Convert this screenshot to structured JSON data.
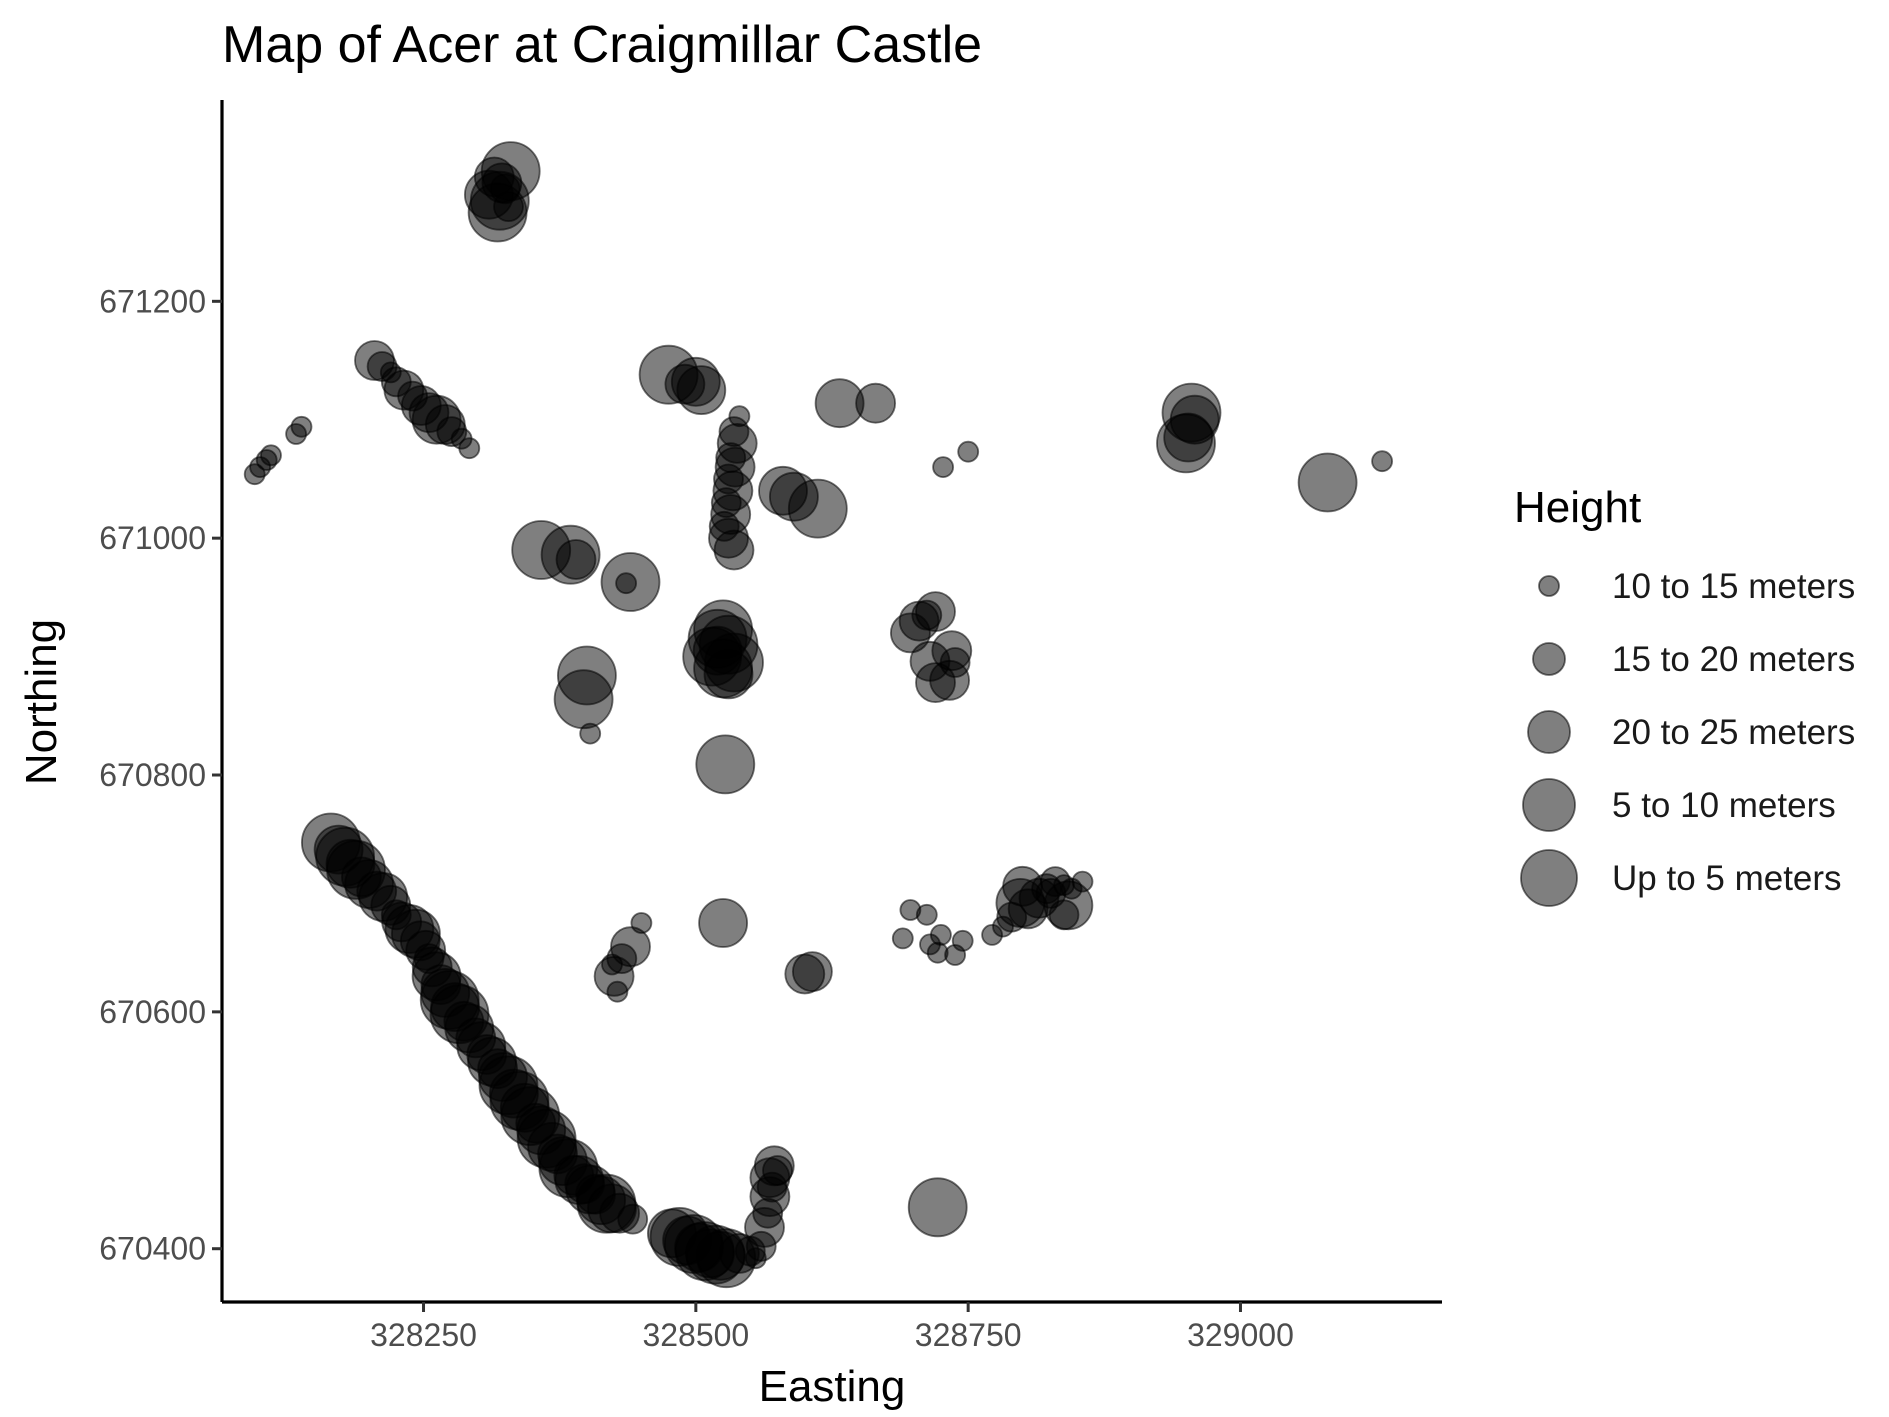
{
  "chart_data": {
    "type": "scatter",
    "title": "Map of Acer at Craigmillar Castle",
    "xlabel": "Easting",
    "ylabel": "Northing",
    "xlim": [
      328065,
      329185
    ],
    "ylim": [
      670355,
      671370
    ],
    "x_ticks": [
      328250,
      328500,
      328750,
      329000
    ],
    "x_tick_labels": [
      "328250",
      "328500",
      "328750",
      "329000"
    ],
    "y_ticks": [
      670400,
      670600,
      670800,
      671000,
      671200
    ],
    "y_tick_labels": [
      "670400",
      "670600",
      "670800",
      "671000",
      "671200"
    ],
    "grid": false,
    "legend_position": "right",
    "point_color": "#000000",
    "point_opacity": 0.5,
    "legend": {
      "title": "Height",
      "entries": [
        {
          "label": "10 to 15 meters",
          "size": 1
        },
        {
          "label": "15 to 20 meters",
          "size": 2
        },
        {
          "label": "20 to 25 meters",
          "size": 3
        },
        {
          "label": "5 to 10 meters",
          "size": 4
        },
        {
          "label": "Up to 5 meters",
          "size": 5
        }
      ]
    },
    "points": [
      {
        "x": 328315,
        "y": 671305,
        "size": 3
      },
      {
        "x": 328330,
        "y": 671310,
        "size": 5
      },
      {
        "x": 328310,
        "y": 671290,
        "size": 4
      },
      {
        "x": 328320,
        "y": 671285,
        "size": 5
      },
      {
        "x": 328325,
        "y": 671295,
        "size": 2
      },
      {
        "x": 328318,
        "y": 671275,
        "size": 5
      },
      {
        "x": 328328,
        "y": 671280,
        "size": 2
      },
      {
        "x": 328322,
        "y": 671300,
        "size": 3
      },
      {
        "x": 328205,
        "y": 671150,
        "size": 3
      },
      {
        "x": 328212,
        "y": 671145,
        "size": 2
      },
      {
        "x": 328220,
        "y": 671140,
        "size": 1
      },
      {
        "x": 328225,
        "y": 671132,
        "size": 2
      },
      {
        "x": 328232,
        "y": 671125,
        "size": 3
      },
      {
        "x": 328240,
        "y": 671120,
        "size": 2
      },
      {
        "x": 328248,
        "y": 671112,
        "size": 3
      },
      {
        "x": 328255,
        "y": 671106,
        "size": 3
      },
      {
        "x": 328262,
        "y": 671100,
        "size": 4
      },
      {
        "x": 328270,
        "y": 671096,
        "size": 3
      },
      {
        "x": 328276,
        "y": 671090,
        "size": 2
      },
      {
        "x": 328285,
        "y": 671084,
        "size": 1
      },
      {
        "x": 328292,
        "y": 671076,
        "size": 1
      },
      {
        "x": 328095,
        "y": 671054,
        "size": 1
      },
      {
        "x": 328100,
        "y": 671060,
        "size": 1
      },
      {
        "x": 328106,
        "y": 671066,
        "size": 1
      },
      {
        "x": 328110,
        "y": 671070,
        "size": 1
      },
      {
        "x": 328133,
        "y": 671088,
        "size": 1
      },
      {
        "x": 328138,
        "y": 671094,
        "size": 1
      },
      {
        "x": 328475,
        "y": 671138,
        "size": 5
      },
      {
        "x": 328500,
        "y": 671132,
        "size": 4
      },
      {
        "x": 328505,
        "y": 671125,
        "size": 4
      },
      {
        "x": 328490,
        "y": 671130,
        "size": 3
      },
      {
        "x": 328540,
        "y": 671103,
        "size": 1
      },
      {
        "x": 328535,
        "y": 671090,
        "size": 2
      },
      {
        "x": 328538,
        "y": 671080,
        "size": 3
      },
      {
        "x": 328532,
        "y": 671068,
        "size": 2
      },
      {
        "x": 328536,
        "y": 671060,
        "size": 3
      },
      {
        "x": 328530,
        "y": 671050,
        "size": 2
      },
      {
        "x": 328534,
        "y": 671040,
        "size": 3
      },
      {
        "x": 328528,
        "y": 671030,
        "size": 2
      },
      {
        "x": 328532,
        "y": 671020,
        "size": 3
      },
      {
        "x": 328526,
        "y": 671010,
        "size": 2
      },
      {
        "x": 328530,
        "y": 671000,
        "size": 3
      },
      {
        "x": 328535,
        "y": 670990,
        "size": 3
      },
      {
        "x": 328580,
        "y": 671040,
        "size": 4
      },
      {
        "x": 328590,
        "y": 671035,
        "size": 4
      },
      {
        "x": 328612,
        "y": 671025,
        "size": 5
      },
      {
        "x": 328632,
        "y": 671114,
        "size": 4
      },
      {
        "x": 328665,
        "y": 671114,
        "size": 3
      },
      {
        "x": 328727,
        "y": 671060,
        "size": 1
      },
      {
        "x": 328750,
        "y": 671073,
        "size": 1
      },
      {
        "x": 328955,
        "y": 671106,
        "size": 5
      },
      {
        "x": 328958,
        "y": 671100,
        "size": 4
      },
      {
        "x": 328952,
        "y": 671085,
        "size": 4
      },
      {
        "x": 328950,
        "y": 671080,
        "size": 5
      },
      {
        "x": 329080,
        "y": 671047,
        "size": 5
      },
      {
        "x": 329130,
        "y": 671065,
        "size": 1
      },
      {
        "x": 328358,
        "y": 670990,
        "size": 5
      },
      {
        "x": 328385,
        "y": 670986,
        "size": 5
      },
      {
        "x": 328390,
        "y": 670982,
        "size": 3
      },
      {
        "x": 328440,
        "y": 670963,
        "size": 5
      },
      {
        "x": 328436,
        "y": 670962,
        "size": 1
      },
      {
        "x": 328400,
        "y": 670884,
        "size": 5
      },
      {
        "x": 328397,
        "y": 670864,
        "size": 5
      },
      {
        "x": 328403,
        "y": 670835,
        "size": 1
      },
      {
        "x": 328525,
        "y": 670923,
        "size": 5
      },
      {
        "x": 328520,
        "y": 670915,
        "size": 5
      },
      {
        "x": 328530,
        "y": 670910,
        "size": 5
      },
      {
        "x": 328515,
        "y": 670900,
        "size": 5
      },
      {
        "x": 328535,
        "y": 670895,
        "size": 5
      },
      {
        "x": 328525,
        "y": 670890,
        "size": 5
      },
      {
        "x": 328520,
        "y": 670905,
        "size": 4
      },
      {
        "x": 328530,
        "y": 670885,
        "size": 4
      },
      {
        "x": 328527,
        "y": 670809,
        "size": 5
      },
      {
        "x": 328697,
        "y": 670920,
        "size": 3
      },
      {
        "x": 328705,
        "y": 670930,
        "size": 3
      },
      {
        "x": 328712,
        "y": 670935,
        "size": 2
      },
      {
        "x": 328720,
        "y": 670938,
        "size": 3
      },
      {
        "x": 328715,
        "y": 670896,
        "size": 3
      },
      {
        "x": 328735,
        "y": 670905,
        "size": 3
      },
      {
        "x": 328738,
        "y": 670895,
        "size": 2
      },
      {
        "x": 328720,
        "y": 670878,
        "size": 3
      },
      {
        "x": 328733,
        "y": 670880,
        "size": 3
      },
      {
        "x": 328525,
        "y": 670675,
        "size": 4
      },
      {
        "x": 328450,
        "y": 670675,
        "size": 1
      },
      {
        "x": 328440,
        "y": 670655,
        "size": 3
      },
      {
        "x": 328432,
        "y": 670645,
        "size": 2
      },
      {
        "x": 328423,
        "y": 670640,
        "size": 1
      },
      {
        "x": 328425,
        "y": 670630,
        "size": 3
      },
      {
        "x": 328428,
        "y": 670617,
        "size": 1
      },
      {
        "x": 328600,
        "y": 670632,
        "size": 3
      },
      {
        "x": 328607,
        "y": 670634,
        "size": 3
      },
      {
        "x": 328697,
        "y": 670686,
        "size": 1
      },
      {
        "x": 328712,
        "y": 670682,
        "size": 1
      },
      {
        "x": 328690,
        "y": 670662,
        "size": 1
      },
      {
        "x": 328715,
        "y": 670657,
        "size": 1
      },
      {
        "x": 328725,
        "y": 670665,
        "size": 1
      },
      {
        "x": 328722,
        "y": 670650,
        "size": 1
      },
      {
        "x": 328738,
        "y": 670648,
        "size": 1
      },
      {
        "x": 328745,
        "y": 670660,
        "size": 1
      },
      {
        "x": 328772,
        "y": 670665,
        "size": 1
      },
      {
        "x": 328782,
        "y": 670672,
        "size": 1
      },
      {
        "x": 328790,
        "y": 670680,
        "size": 2
      },
      {
        "x": 328798,
        "y": 670692,
        "size": 4
      },
      {
        "x": 328800,
        "y": 670706,
        "size": 3
      },
      {
        "x": 328805,
        "y": 670687,
        "size": 3
      },
      {
        "x": 328815,
        "y": 670696,
        "size": 3
      },
      {
        "x": 328822,
        "y": 670704,
        "size": 2
      },
      {
        "x": 328830,
        "y": 670710,
        "size": 2
      },
      {
        "x": 328838,
        "y": 670707,
        "size": 1
      },
      {
        "x": 328845,
        "y": 670704,
        "size": 1
      },
      {
        "x": 328855,
        "y": 670710,
        "size": 1
      },
      {
        "x": 328842,
        "y": 670690,
        "size": 4
      },
      {
        "x": 328838,
        "y": 670682,
        "size": 2
      },
      {
        "x": 328826,
        "y": 670700,
        "size": 2
      },
      {
        "x": 328722,
        "y": 670435,
        "size": 5
      },
      {
        "x": 328165,
        "y": 670743,
        "size": 5
      },
      {
        "x": 328172,
        "y": 670737,
        "size": 4
      },
      {
        "x": 328178,
        "y": 670731,
        "size": 5
      },
      {
        "x": 328183,
        "y": 670725,
        "size": 4
      },
      {
        "x": 328188,
        "y": 670720,
        "size": 5
      },
      {
        "x": 328193,
        "y": 670714,
        "size": 3
      },
      {
        "x": 328200,
        "y": 670708,
        "size": 4
      },
      {
        "x": 328207,
        "y": 670702,
        "size": 3
      },
      {
        "x": 328213,
        "y": 670697,
        "size": 4
      },
      {
        "x": 328220,
        "y": 670690,
        "size": 3
      },
      {
        "x": 328225,
        "y": 670682,
        "size": 2
      },
      {
        "x": 328230,
        "y": 670676,
        "size": 3
      },
      {
        "x": 328237,
        "y": 670670,
        "size": 4
      },
      {
        "x": 328243,
        "y": 670666,
        "size": 4
      },
      {
        "x": 328247,
        "y": 670660,
        "size": 3
      },
      {
        "x": 328252,
        "y": 670652,
        "size": 3
      },
      {
        "x": 328255,
        "y": 670645,
        "size": 2
      },
      {
        "x": 328258,
        "y": 670638,
        "size": 3
      },
      {
        "x": 328262,
        "y": 670630,
        "size": 4
      },
      {
        "x": 328266,
        "y": 670623,
        "size": 3
      },
      {
        "x": 328270,
        "y": 670616,
        "size": 4
      },
      {
        "x": 328274,
        "y": 670610,
        "size": 5
      },
      {
        "x": 328279,
        "y": 670604,
        "size": 4
      },
      {
        "x": 328283,
        "y": 670598,
        "size": 5
      },
      {
        "x": 328287,
        "y": 670592,
        "size": 3
      },
      {
        "x": 328292,
        "y": 670586,
        "size": 4
      },
      {
        "x": 328298,
        "y": 670578,
        "size": 3
      },
      {
        "x": 328303,
        "y": 670571,
        "size": 4
      },
      {
        "x": 328308,
        "y": 670564,
        "size": 3
      },
      {
        "x": 328313,
        "y": 670558,
        "size": 4
      },
      {
        "x": 328318,
        "y": 670552,
        "size": 3
      },
      {
        "x": 328323,
        "y": 670545,
        "size": 4
      },
      {
        "x": 328328,
        "y": 670538,
        "size": 5
      },
      {
        "x": 328333,
        "y": 670531,
        "size": 4
      },
      {
        "x": 328338,
        "y": 670525,
        "size": 5
      },
      {
        "x": 328343,
        "y": 670519,
        "size": 4
      },
      {
        "x": 328348,
        "y": 670512,
        "size": 5
      },
      {
        "x": 328353,
        "y": 670506,
        "size": 3
      },
      {
        "x": 328358,
        "y": 670500,
        "size": 4
      },
      {
        "x": 328363,
        "y": 670493,
        "size": 5
      },
      {
        "x": 328368,
        "y": 670486,
        "size": 4
      },
      {
        "x": 328373,
        "y": 670480,
        "size": 3
      },
      {
        "x": 328378,
        "y": 670474,
        "size": 4
      },
      {
        "x": 328383,
        "y": 670468,
        "size": 5
      },
      {
        "x": 328388,
        "y": 670462,
        "size": 3
      },
      {
        "x": 328393,
        "y": 670458,
        "size": 4
      },
      {
        "x": 328398,
        "y": 670455,
        "size": 3
      },
      {
        "x": 328403,
        "y": 670450,
        "size": 4
      },
      {
        "x": 328408,
        "y": 670446,
        "size": 3
      },
      {
        "x": 328413,
        "y": 670441,
        "size": 4
      },
      {
        "x": 328418,
        "y": 670438,
        "size": 5
      },
      {
        "x": 328423,
        "y": 670434,
        "size": 4
      },
      {
        "x": 328430,
        "y": 670430,
        "size": 3
      },
      {
        "x": 328442,
        "y": 670425,
        "size": 2
      },
      {
        "x": 328478,
        "y": 670413,
        "size": 4
      },
      {
        "x": 328485,
        "y": 670410,
        "size": 5
      },
      {
        "x": 328492,
        "y": 670407,
        "size": 4
      },
      {
        "x": 328498,
        "y": 670404,
        "size": 5
      },
      {
        "x": 328503,
        "y": 670401,
        "size": 4
      },
      {
        "x": 328508,
        "y": 670398,
        "size": 5
      },
      {
        "x": 328513,
        "y": 670396,
        "size": 4
      },
      {
        "x": 328518,
        "y": 670395,
        "size": 5
      },
      {
        "x": 328523,
        "y": 670394,
        "size": 4
      },
      {
        "x": 328528,
        "y": 670392,
        "size": 5
      },
      {
        "x": 328540,
        "y": 670396,
        "size": 3
      },
      {
        "x": 328550,
        "y": 670398,
        "size": 2
      },
      {
        "x": 328555,
        "y": 670392,
        "size": 1
      },
      {
        "x": 328560,
        "y": 670402,
        "size": 2
      },
      {
        "x": 328563,
        "y": 670418,
        "size": 3
      },
      {
        "x": 328566,
        "y": 670430,
        "size": 2
      },
      {
        "x": 328568,
        "y": 670444,
        "size": 3
      },
      {
        "x": 328570,
        "y": 670452,
        "size": 2
      },
      {
        "x": 328568,
        "y": 670460,
        "size": 3
      },
      {
        "x": 328572,
        "y": 670470,
        "size": 3
      },
      {
        "x": 328575,
        "y": 670466,
        "size": 2
      }
    ]
  }
}
